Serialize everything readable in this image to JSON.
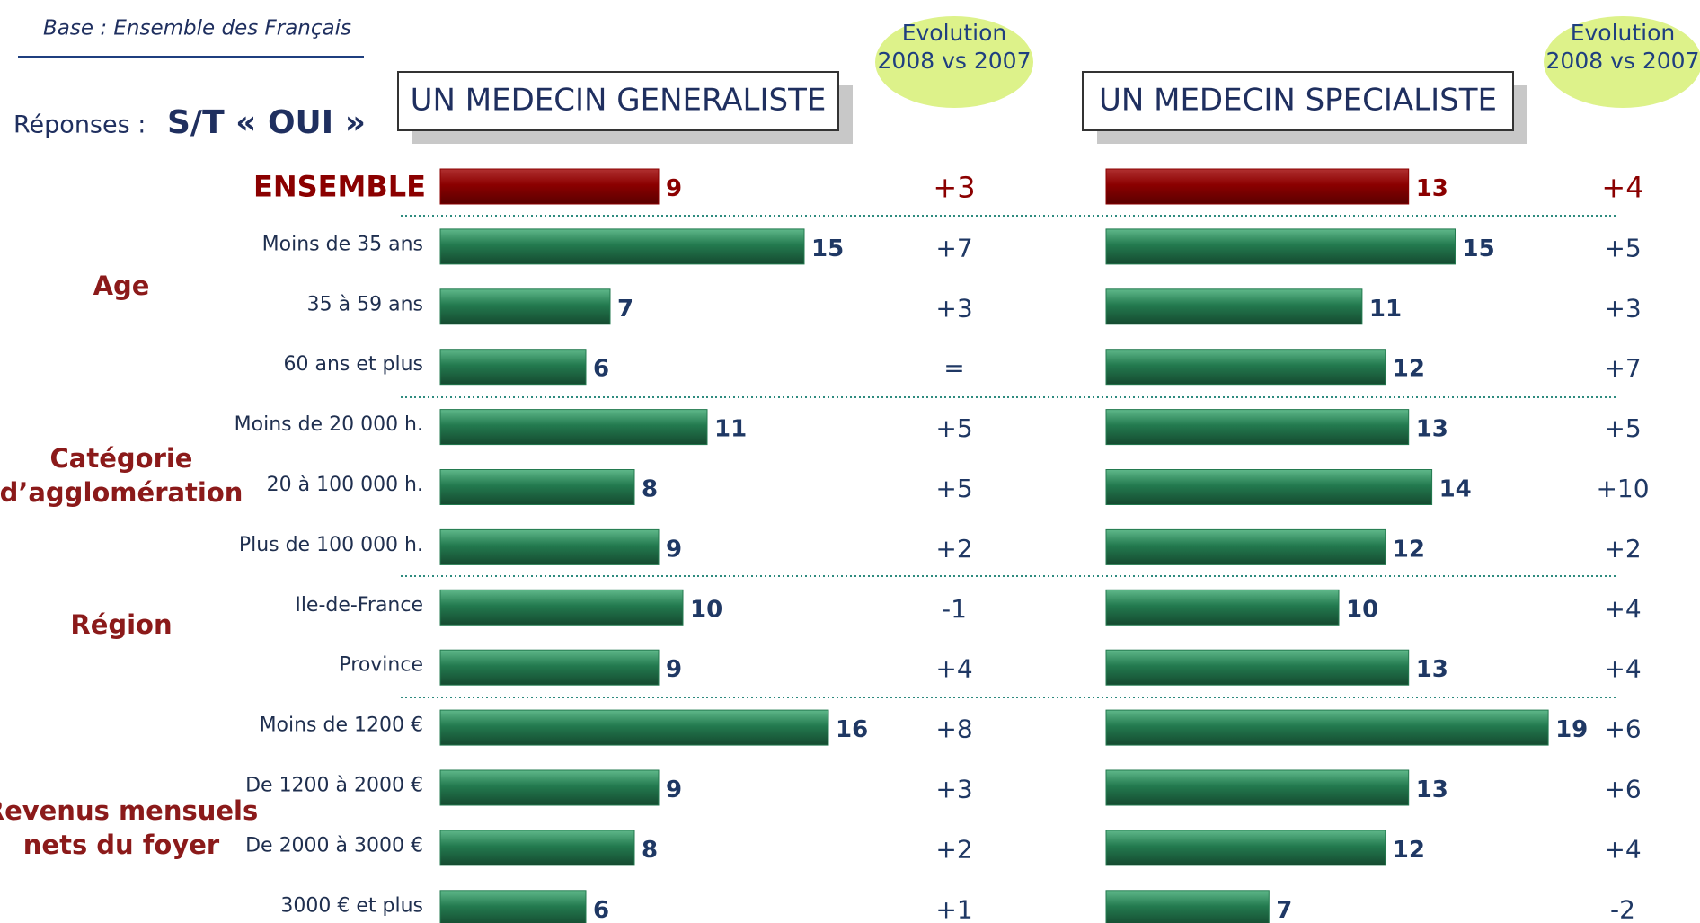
{
  "base": "Base : Ensemble des Français",
  "responses_label": "Réponses :",
  "responses_value": "S/T « OUI »",
  "groups": [
    {
      "lines": [
        "Age"
      ]
    },
    {
      "lines": [
        "Catégorie",
        "d’agglomération"
      ]
    },
    {
      "lines": [
        "Région"
      ]
    },
    {
      "lines": [
        "Revenus mensuels",
        "nets du foyer"
      ]
    }
  ],
  "chart_data": [
    {
      "type": "bar",
      "title": "UN MEDECIN GENERALISTE",
      "evolution_header": [
        "Evolution",
        "2008 vs 2007"
      ],
      "categories": [
        "ENSEMBLE",
        "Moins de 35 ans",
        "35 à 59 ans",
        "60 ans et plus",
        "Moins de 20 000 h.",
        "20 à 100 000 h.",
        "Plus de 100 000 h.",
        "Ile-de-France",
        "Province",
        "Moins de 1200 €",
        "De 1200 à 2000 €",
        "De 2000 à 3000 €",
        "3000 € et plus"
      ],
      "values": [
        9,
        15,
        7,
        6,
        11,
        8,
        9,
        10,
        9,
        16,
        9,
        8,
        6
      ],
      "evolution": [
        "+3",
        "+7",
        "+3",
        "=",
        "+5",
        "+5",
        "+2",
        "-1",
        "+4",
        "+8",
        "+3",
        "+2",
        "+1"
      ],
      "total_color": "#8b0000",
      "color": "#237a4f"
    },
    {
      "type": "bar",
      "title": "UN MEDECIN SPECIALISTE",
      "evolution_header": [
        "Evolution",
        "2008 vs 2007"
      ],
      "values": [
        13,
        15,
        11,
        12,
        13,
        14,
        12,
        10,
        13,
        19,
        13,
        12,
        7
      ],
      "evolution": [
        "+4",
        "+5",
        "+3",
        "+7",
        "+5",
        "+10",
        "+2",
        "+4",
        "+4",
        "+6",
        "+6",
        "+4",
        "-2"
      ],
      "total_color": "#8b0000",
      "color": "#237a4f"
    }
  ]
}
